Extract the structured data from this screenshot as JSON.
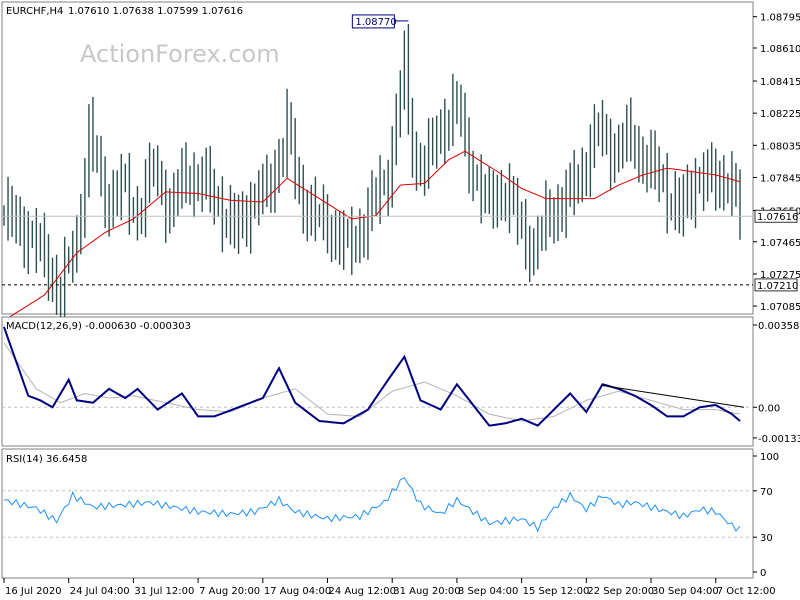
{
  "header": {
    "symbol": "EURCHF,H4",
    "ohlc": "1.07610 1.07638 1.07599 1.07616",
    "watermark": "ActionForex.com"
  },
  "colors": {
    "bars": "#2f4f4f",
    "ma": "#dc0000",
    "macd": "#000080",
    "signal": "#b4b4b4",
    "rsi": "#1e90ff",
    "price_tag": "#ffffff"
  },
  "price_panel": {
    "axis_labels": [
      "1.08795",
      "1.08610",
      "1.08415",
      "1.08225",
      "1.08035",
      "1.07845",
      "1.07650",
      "1.07465",
      "1.07275",
      "1.07085"
    ],
    "axis_values": [
      1.08795,
      1.0861,
      1.08415,
      1.08225,
      1.08035,
      1.07845,
      1.0765,
      1.07465,
      1.07275,
      1.07085
    ],
    "range": [
      1.0705,
      1.0887
    ],
    "current_label": "1.07616",
    "current_value": 1.07616,
    "support_label": "1.07210",
    "support_value": 1.0721,
    "peak_label": "1.08770",
    "peak_value": 1.0877,
    "peak_index": 99
  },
  "macd_panel": {
    "title": "MACD(12,26,9) -0.000630 -0.000303",
    "axis_labels": [
      "0.003584",
      "0.00",
      "-0.001335"
    ],
    "axis_values": [
      0.003584,
      0,
      -0.001335
    ],
    "range": [
      -0.0016,
      0.0038
    ],
    "current_label": "0.00"
  },
  "rsi_panel": {
    "title": "RSI(14) 36.6458",
    "axis_labels": [
      "100",
      "70",
      "30",
      "0"
    ],
    "axis_values": [
      100,
      70,
      30,
      0
    ],
    "range": [
      0,
      100
    ],
    "levels": [
      70,
      30
    ]
  },
  "x_axis": {
    "labels": [
      "16 Jul 2020",
      "24 Jul 04:00",
      "31 Jul 12:00",
      "7 Aug 20:00",
      "17 Aug 04:00",
      "24 Aug 12:00",
      "31 Aug 20:00",
      "8 Sep 04:00",
      "15 Sep 12:00",
      "22 Sep 20:00",
      "30 Sep 04:00",
      "7 Oct 12:00"
    ],
    "label_bar_index": [
      0,
      16,
      32,
      48,
      64,
      80,
      96,
      112,
      128,
      144,
      160,
      176
    ]
  },
  "chart_data": {
    "type": "candlestick",
    "series": [
      {
        "name": "EURCHF,H4",
        "close_anchors": [
          [
            0,
            1.0762
          ],
          [
            6,
            1.0752
          ],
          [
            11,
            1.0732
          ],
          [
            14,
            1.0715
          ],
          [
            18,
            1.075
          ],
          [
            21,
            1.081
          ],
          [
            25,
            1.0772
          ],
          [
            29,
            1.0778
          ],
          [
            33,
            1.0764
          ],
          [
            37,
            1.079
          ],
          [
            41,
            1.0766
          ],
          [
            45,
            1.0786
          ],
          [
            49,
            1.0782
          ],
          [
            53,
            1.077
          ],
          [
            57,
            1.0752
          ],
          [
            61,
            1.077
          ],
          [
            65,
            1.0776
          ],
          [
            70,
            1.0812
          ],
          [
            73,
            1.0776
          ],
          [
            77,
            1.076
          ],
          [
            81,
            1.0755
          ],
          [
            85,
            1.0742
          ],
          [
            90,
            1.0762
          ],
          [
            95,
            1.0788
          ],
          [
            99,
            1.085
          ],
          [
            101,
            1.08
          ],
          [
            104,
            1.079
          ],
          [
            108,
            1.0815
          ],
          [
            112,
            1.0826
          ],
          [
            115,
            1.0796
          ],
          [
            119,
            1.0768
          ],
          [
            123,
            1.0778
          ],
          [
            127,
            1.076
          ],
          [
            131,
            1.074
          ],
          [
            135,
            1.0765
          ],
          [
            139,
            1.077
          ],
          [
            143,
            1.079
          ],
          [
            147,
            1.0812
          ],
          [
            151,
            1.08
          ],
          [
            155,
            1.0808
          ],
          [
            159,
            1.0792
          ],
          [
            163,
            1.0782
          ],
          [
            167,
            1.0762
          ],
          [
            171,
            1.0785
          ],
          [
            175,
            1.0782
          ],
          [
            179,
            1.0785
          ],
          [
            182,
            1.0762
          ]
        ]
      },
      {
        "name": "MA",
        "anchors": [
          [
            0,
            1.07
          ],
          [
            10,
            1.0715
          ],
          [
            18,
            1.074
          ],
          [
            25,
            1.0752
          ],
          [
            32,
            1.076
          ],
          [
            40,
            1.0776
          ],
          [
            48,
            1.0775
          ],
          [
            56,
            1.0771
          ],
          [
            64,
            1.077
          ],
          [
            70,
            1.0784
          ],
          [
            78,
            1.0772
          ],
          [
            86,
            1.076
          ],
          [
            92,
            1.0762
          ],
          [
            98,
            1.078
          ],
          [
            104,
            1.0781
          ],
          [
            110,
            1.0795
          ],
          [
            114,
            1.08
          ],
          [
            122,
            1.0788
          ],
          [
            128,
            1.0778
          ],
          [
            134,
            1.0772
          ],
          [
            140,
            1.0772
          ],
          [
            146,
            1.0772
          ],
          [
            152,
            1.078
          ],
          [
            158,
            1.0786
          ],
          [
            164,
            1.079
          ],
          [
            170,
            1.0788
          ],
          [
            176,
            1.0786
          ],
          [
            182,
            1.0782
          ]
        ]
      },
      {
        "name": "MACD",
        "anchors": [
          [
            0,
            0.0035
          ],
          [
            6,
            0.0005
          ],
          [
            9,
            0.0003
          ],
          [
            12,
            0.0
          ],
          [
            16,
            0.0012
          ],
          [
            18,
            0.0003
          ],
          [
            22,
            0.0002
          ],
          [
            26,
            0.0008
          ],
          [
            30,
            0.0004
          ],
          [
            33,
            0.0008
          ],
          [
            38,
            -0.0001
          ],
          [
            44,
            0.0006
          ],
          [
            48,
            -0.0004
          ],
          [
            52,
            -0.0004
          ],
          [
            58,
            0.0
          ],
          [
            64,
            0.0004
          ],
          [
            68,
            0.0017
          ],
          [
            72,
            0.0002
          ],
          [
            78,
            -0.0006
          ],
          [
            84,
            -0.0007
          ],
          [
            90,
            -0.0001
          ],
          [
            95,
            0.0012
          ],
          [
            99,
            0.0022
          ],
          [
            103,
            0.0003
          ],
          [
            108,
            -0.0001
          ],
          [
            112,
            0.001
          ],
          [
            116,
            0.0001
          ],
          [
            120,
            -0.0008
          ],
          [
            124,
            -0.0007
          ],
          [
            128,
            -0.0005
          ],
          [
            132,
            -0.0008
          ],
          [
            136,
            -0.0001
          ],
          [
            140,
            0.0006
          ],
          [
            144,
            -0.0002
          ],
          [
            148,
            0.001
          ],
          [
            152,
            0.0008
          ],
          [
            156,
            0.0005
          ],
          [
            160,
            0.0001
          ],
          [
            164,
            -0.0004
          ],
          [
            168,
            -0.0004
          ],
          [
            172,
            0.0
          ],
          [
            176,
            0.0001
          ],
          [
            180,
            -0.0003
          ],
          [
            182,
            -0.0006
          ]
        ]
      },
      {
        "name": "Signal",
        "anchors": [
          [
            0,
            0.0028
          ],
          [
            8,
            0.0008
          ],
          [
            14,
            0.0002
          ],
          [
            20,
            0.0006
          ],
          [
            26,
            0.0004
          ],
          [
            32,
            0.0005
          ],
          [
            40,
            0.0002
          ],
          [
            48,
            -0.0001
          ],
          [
            56,
            -0.0002
          ],
          [
            64,
            0.0004
          ],
          [
            72,
            0.0008
          ],
          [
            80,
            -0.0003
          ],
          [
            88,
            -0.0004
          ],
          [
            96,
            0.0007
          ],
          [
            104,
            0.0011
          ],
          [
            112,
            0.0005
          ],
          [
            120,
            -0.0003
          ],
          [
            128,
            -0.0006
          ],
          [
            136,
            -0.0004
          ],
          [
            144,
            0.0003
          ],
          [
            152,
            0.0007
          ],
          [
            160,
            0.0003
          ],
          [
            168,
            -0.0001
          ],
          [
            176,
            -0.0001
          ],
          [
            182,
            -0.0003
          ]
        ]
      },
      {
        "name": "RSI",
        "anchors": [
          [
            0,
            62
          ],
          [
            8,
            55
          ],
          [
            13,
            44
          ],
          [
            17,
            66
          ],
          [
            22,
            56
          ],
          [
            30,
            58
          ],
          [
            36,
            60
          ],
          [
            42,
            56
          ],
          [
            48,
            52
          ],
          [
            56,
            50
          ],
          [
            62,
            52
          ],
          [
            68,
            62
          ],
          [
            72,
            52
          ],
          [
            80,
            46
          ],
          [
            88,
            48
          ],
          [
            94,
            60
          ],
          [
            99,
            82
          ],
          [
            103,
            58
          ],
          [
            108,
            50
          ],
          [
            112,
            62
          ],
          [
            116,
            52
          ],
          [
            120,
            42
          ],
          [
            124,
            44
          ],
          [
            128,
            46
          ],
          [
            132,
            38
          ],
          [
            136,
            55
          ],
          [
            140,
            66
          ],
          [
            144,
            54
          ],
          [
            148,
            66
          ],
          [
            152,
            58
          ],
          [
            156,
            60
          ],
          [
            160,
            56
          ],
          [
            164,
            52
          ],
          [
            168,
            48
          ],
          [
            172,
            54
          ],
          [
            176,
            52
          ],
          [
            180,
            40
          ],
          [
            182,
            36.6458
          ]
        ]
      }
    ],
    "downtrend_line": {
      "from": [
        148,
        0.00095
      ],
      "to": [
        183,
        0.0
      ]
    },
    "bar_count": 183
  }
}
